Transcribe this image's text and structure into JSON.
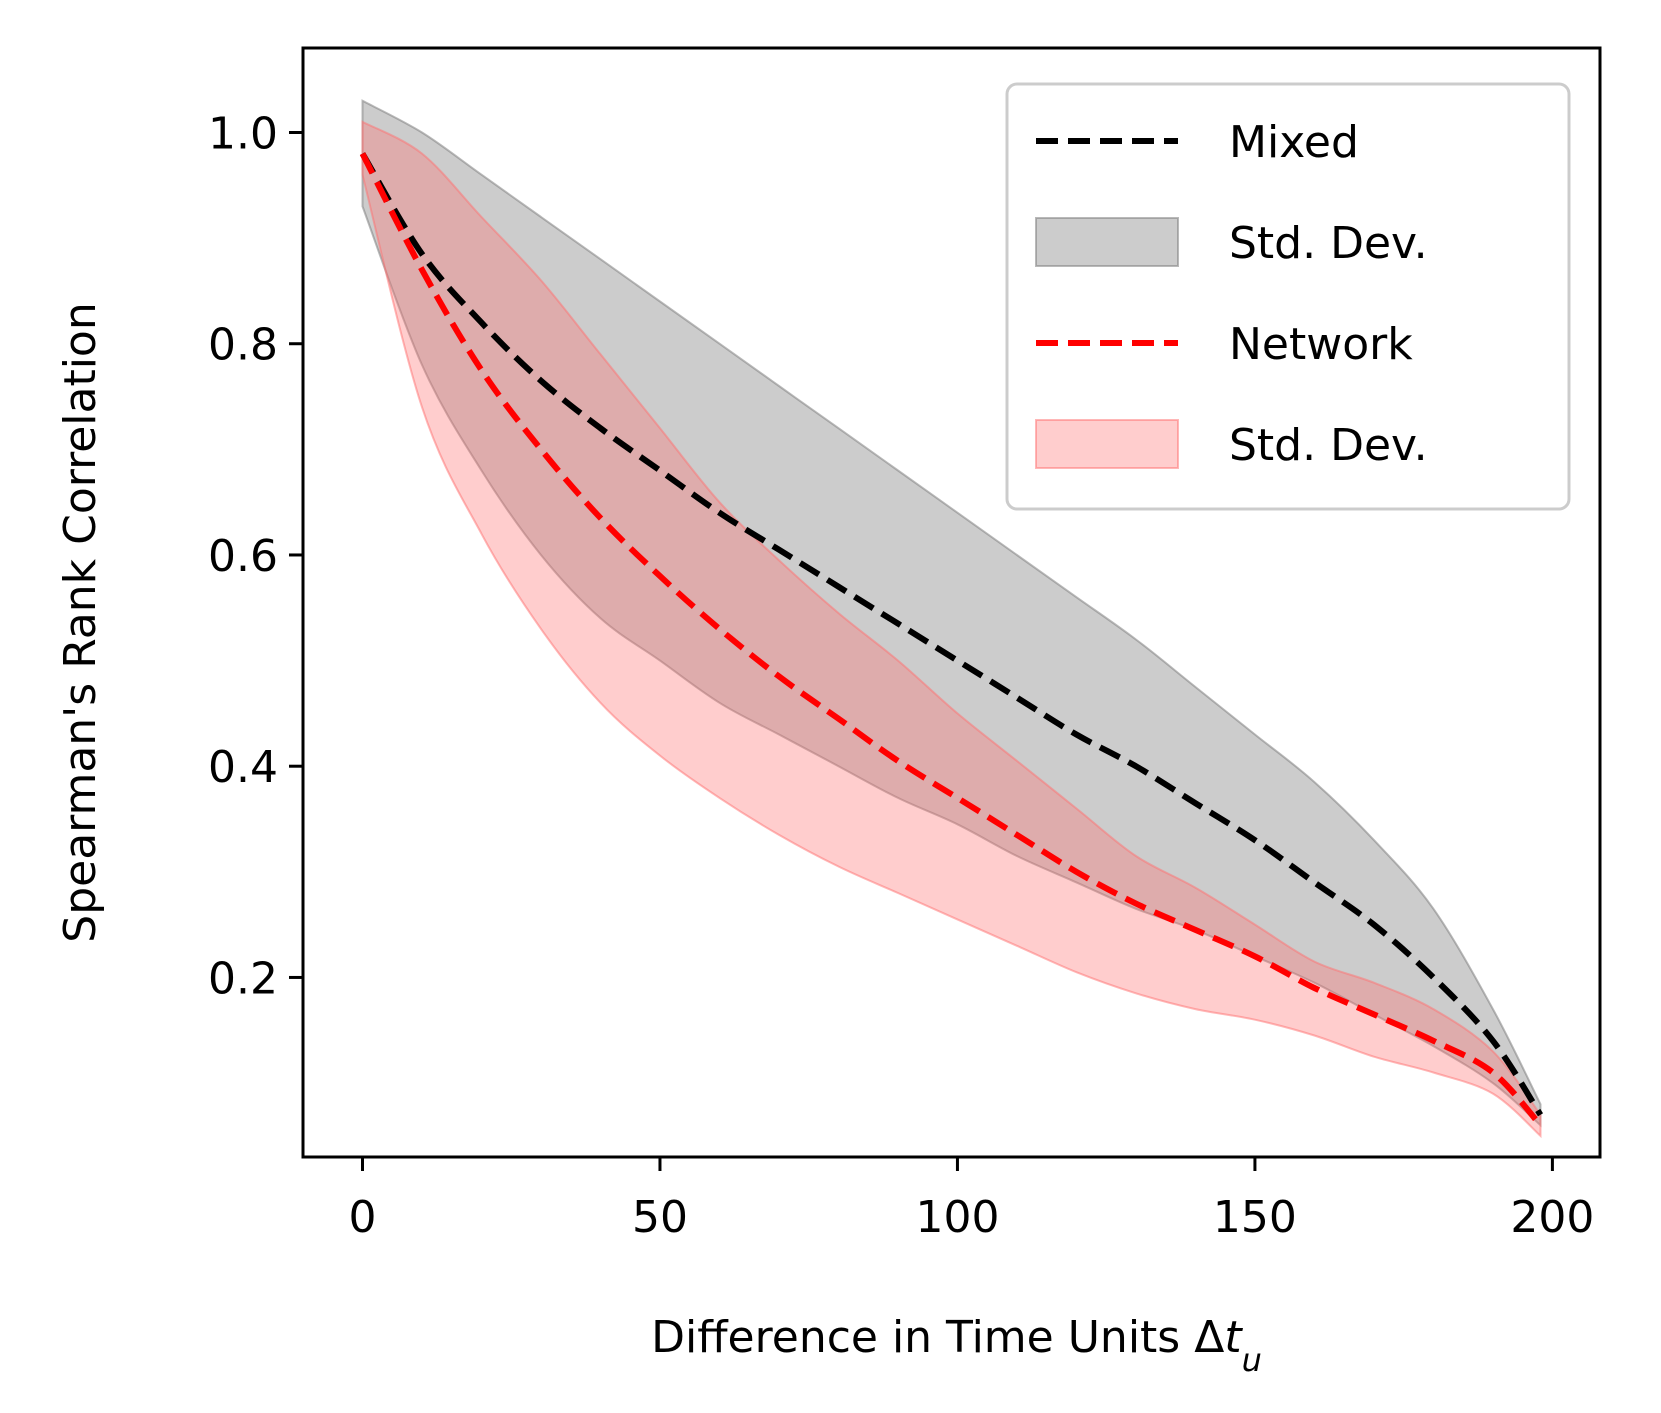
{
  "chart_data": {
    "type": "line",
    "title": "",
    "xlabel": "Difference in Time Units Δt",
    "xlabel_subscript": "u",
    "ylabel": "Spearman's Rank Correlation",
    "xlim": [
      -10,
      208
    ],
    "ylim": [
      0.03,
      1.08
    ],
    "xticks": [
      0,
      50,
      100,
      150,
      200
    ],
    "xtick_labels": [
      "0",
      "50",
      "100",
      "150",
      "200"
    ],
    "yticks": [
      0.2,
      0.4,
      0.6,
      0.8,
      1.0
    ],
    "ytick_labels": [
      "0.2",
      "0.4",
      "0.6",
      "0.8",
      "1.0"
    ],
    "grid": false,
    "legend_position": "top-right",
    "x": [
      0,
      10,
      20,
      30,
      40,
      50,
      60,
      70,
      80,
      90,
      100,
      110,
      120,
      130,
      140,
      150,
      160,
      170,
      180,
      190,
      198
    ],
    "series": [
      {
        "name": "Mixed",
        "style": "dashed",
        "color": "#000000",
        "values": [
          0.98,
          0.885,
          0.82,
          0.765,
          0.72,
          0.68,
          0.64,
          0.605,
          0.57,
          0.535,
          0.5,
          0.465,
          0.43,
          0.4,
          0.365,
          0.33,
          0.29,
          0.25,
          0.2,
          0.14,
          0.07
        ]
      },
      {
        "name": "Std. Dev.",
        "type": "band",
        "band_of": "Mixed",
        "color": "#808080",
        "opacity": 0.4,
        "upper": [
          1.03,
          1.0,
          0.96,
          0.92,
          0.88,
          0.84,
          0.8,
          0.76,
          0.72,
          0.68,
          0.64,
          0.6,
          0.56,
          0.52,
          0.475,
          0.43,
          0.385,
          0.33,
          0.265,
          0.17,
          0.08
        ],
        "lower": [
          0.93,
          0.78,
          0.68,
          0.6,
          0.54,
          0.5,
          0.46,
          0.43,
          0.4,
          0.37,
          0.345,
          0.315,
          0.29,
          0.265,
          0.245,
          0.22,
          0.195,
          0.165,
          0.135,
          0.1,
          0.06
        ]
      },
      {
        "name": "Network",
        "style": "dashed",
        "color": "#ff0000",
        "values": [
          0.98,
          0.87,
          0.775,
          0.7,
          0.635,
          0.58,
          0.53,
          0.485,
          0.445,
          0.405,
          0.37,
          0.335,
          0.3,
          0.27,
          0.245,
          0.22,
          0.19,
          0.165,
          0.14,
          0.11,
          0.06
        ]
      },
      {
        "name": "Std. Dev.",
        "type": "band",
        "band_of": "Network",
        "color": "#ff7070",
        "opacity": 0.35,
        "upper": [
          1.01,
          0.98,
          0.92,
          0.86,
          0.79,
          0.72,
          0.65,
          0.595,
          0.545,
          0.5,
          0.45,
          0.405,
          0.36,
          0.315,
          0.285,
          0.25,
          0.215,
          0.195,
          0.17,
          0.13,
          0.07
        ],
        "lower": [
          0.96,
          0.74,
          0.62,
          0.53,
          0.46,
          0.41,
          0.37,
          0.335,
          0.305,
          0.28,
          0.255,
          0.23,
          0.205,
          0.185,
          0.17,
          0.16,
          0.145,
          0.125,
          0.11,
          0.09,
          0.05
        ]
      }
    ],
    "legend": [
      {
        "label": "Mixed",
        "kind": "line",
        "color": "#000000"
      },
      {
        "label": "Std. Dev.",
        "kind": "patch",
        "color": "#808080",
        "opacity": 0.4
      },
      {
        "label": "Network",
        "kind": "line",
        "color": "#ff0000"
      },
      {
        "label": "Std. Dev.",
        "kind": "patch",
        "color": "#ff7070",
        "opacity": 0.35
      }
    ]
  }
}
